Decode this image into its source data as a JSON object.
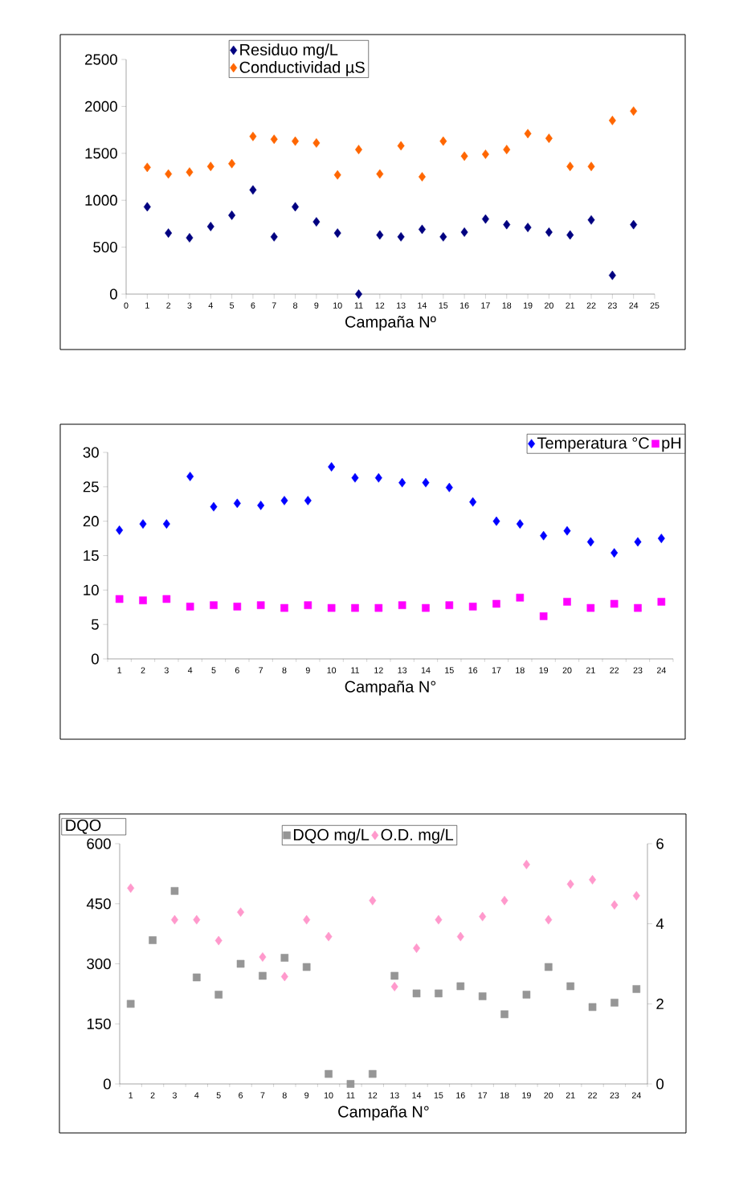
{
  "chart_data": [
    {
      "type": "scatter",
      "xlabel": "Campaña Nº",
      "x": [
        1,
        2,
        3,
        4,
        5,
        6,
        7,
        8,
        9,
        10,
        11,
        12,
        13,
        14,
        15,
        16,
        17,
        18,
        19,
        20,
        21,
        22,
        23,
        24
      ],
      "xlim": [
        0,
        25
      ],
      "xticks": [
        0,
        1,
        2,
        3,
        4,
        5,
        6,
        7,
        8,
        9,
        10,
        11,
        12,
        13,
        14,
        15,
        16,
        17,
        18,
        19,
        20,
        21,
        22,
        23,
        24,
        25
      ],
      "ylim": [
        0,
        2500
      ],
      "yticks": [
        0,
        500,
        1000,
        1500,
        2000,
        2500
      ],
      "legend": "top",
      "grid": false,
      "series": [
        {
          "name": "Residuo mg/L",
          "color": "#000080",
          "marker": "diamond",
          "values": [
            930,
            650,
            600,
            720,
            840,
            1110,
            610,
            930,
            770,
            650,
            0,
            630,
            610,
            690,
            610,
            660,
            800,
            740,
            710,
            660,
            630,
            790,
            200,
            740
          ]
        },
        {
          "name": "Conductividad µS",
          "color": "#ff6600",
          "marker": "diamond",
          "values": [
            1350,
            1280,
            1300,
            1360,
            1390,
            1680,
            1650,
            1630,
            1610,
            1270,
            1540,
            1280,
            1580,
            1250,
            1630,
            1470,
            1490,
            1540,
            1710,
            1660,
            1360,
            1360,
            1850,
            1950
          ]
        }
      ]
    },
    {
      "type": "scatter",
      "xlabel": "Campaña N°",
      "categories": [
        "1",
        "2",
        "3",
        "4",
        "5",
        "6",
        "7",
        "8",
        "9",
        "10",
        "11",
        "12",
        "13",
        "14",
        "15",
        "16",
        "17",
        "18",
        "19",
        "20",
        "21",
        "22",
        "23",
        "24"
      ],
      "ylim": [
        0,
        30
      ],
      "yticks": [
        0,
        5,
        10,
        15,
        20,
        25,
        30
      ],
      "legend": "top right",
      "grid": false,
      "series": [
        {
          "name": "Temperatura  °C",
          "color": "#0000ff",
          "marker": "diamond",
          "values": [
            18.7,
            19.6,
            19.6,
            26.5,
            22.1,
            22.6,
            22.3,
            23.0,
            23.0,
            27.9,
            26.3,
            26.3,
            25.6,
            25.6,
            24.9,
            22.8,
            20.0,
            19.6,
            17.9,
            18.6,
            17.0,
            15.4,
            17.0,
            17.5
          ]
        },
        {
          "name": "pH",
          "color": "#ff00ff",
          "marker": "square",
          "values": [
            8.7,
            8.5,
            8.7,
            7.6,
            7.8,
            7.6,
            7.8,
            7.4,
            7.8,
            7.4,
            7.4,
            7.4,
            7.8,
            7.4,
            7.8,
            7.6,
            8.0,
            8.9,
            6.2,
            8.3,
            7.4,
            8.0,
            7.4,
            8.3
          ]
        }
      ]
    },
    {
      "type": "scatter",
      "xlabel": "Campaña N°",
      "ylabel": "DQO",
      "categories": [
        "1",
        "2",
        "3",
        "4",
        "5",
        "6",
        "7",
        "8",
        "9",
        "10",
        "11",
        "12",
        "13",
        "14",
        "15",
        "16",
        "17",
        "18",
        "19",
        "20",
        "21",
        "22",
        "23",
        "24"
      ],
      "ylim": [
        0,
        600
      ],
      "yticks": [
        0,
        150,
        300,
        450,
        600
      ],
      "y2lim": [
        0,
        6
      ],
      "y2ticks": [
        0,
        2,
        4,
        6
      ],
      "legend": "top",
      "grid": false,
      "series": [
        {
          "name": "DQO  mg/L",
          "color": "#969696",
          "marker": "square",
          "values": [
            200,
            359,
            482,
            266,
            223,
            300,
            270,
            315,
            292,
            25,
            0,
            25,
            270,
            226,
            226,
            244,
            219,
            174,
            223,
            292,
            244,
            192,
            203,
            237
          ]
        },
        {
          "name": "O.D.  mg/L",
          "color": "#ff99cc",
          "marker": "diamond",
          "axis": "y2",
          "values": [
            4.89,
            null,
            4.1,
            4.1,
            3.58,
            4.29,
            3.17,
            2.68,
            4.1,
            3.68,
            null,
            4.58,
            2.43,
            3.39,
            4.1,
            3.68,
            4.18,
            4.58,
            5.48,
            4.1,
            4.99,
            5.1,
            4.47,
            4.7
          ]
        }
      ]
    }
  ]
}
